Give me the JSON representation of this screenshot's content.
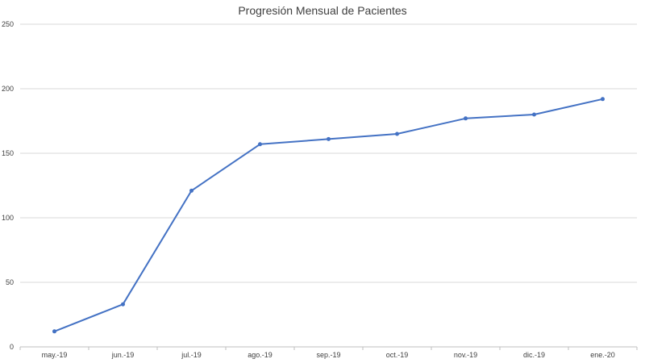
{
  "chart_data": {
    "type": "line",
    "title": "Progresión Mensual de Pacientes",
    "xlabel": "",
    "ylabel": "",
    "categories": [
      "may.-19",
      "jun.-19",
      "jul.-19",
      "ago.-19",
      "sep.-19",
      "oct.-19",
      "nov.-19",
      "dic.-19",
      "ene.-20"
    ],
    "series": [
      {
        "values": [
          12,
          33,
          121,
          157,
          161,
          165,
          177,
          180,
          192
        ],
        "color": "#4472c4"
      }
    ],
    "ylim": [
      0,
      250
    ],
    "yticks": [
      0,
      50,
      100,
      150,
      200,
      250
    ],
    "grid": true,
    "legend": "none"
  }
}
